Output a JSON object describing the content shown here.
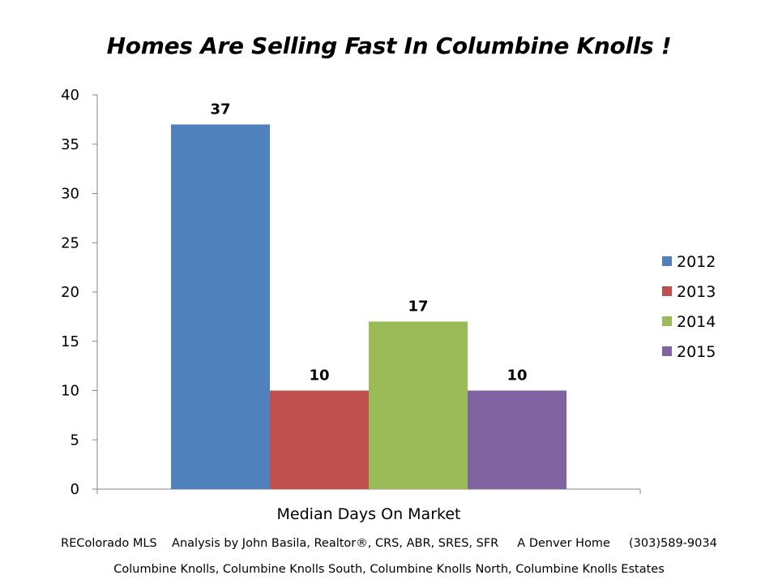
{
  "title": "Homes Are Selling Fast In Columbine Knolls !",
  "footer": {
    "line1": "REColorado MLS    Analysis by John Basila, Realtor®, CRS, ABR, SRES, SFR     A Denver Home     (303)589-9034",
    "line2": "Columbine Knolls, Columbine Knolls South, Columbine Knolls North, Columbine Knolls Estates"
  },
  "chart_data": {
    "type": "bar",
    "title": "Homes Are Selling Fast In Columbine Knolls !",
    "categories": [
      "Median Days On Market"
    ],
    "series": [
      {
        "name": "2012",
        "values": [
          37
        ],
        "color": "#4F81BD"
      },
      {
        "name": "2013",
        "values": [
          10
        ],
        "color": "#C0504D"
      },
      {
        "name": "2014",
        "values": [
          17
        ],
        "color": "#9BBB59"
      },
      {
        "name": "2015",
        "values": [
          10
        ],
        "color": "#8064A2"
      }
    ],
    "xlabel": "",
    "ylabel": "",
    "ylim": [
      0,
      40
    ],
    "yticks": [
      0,
      5,
      10,
      15,
      20,
      25,
      30,
      35,
      40
    ],
    "data_labels": true,
    "grid": false,
    "legend_position": "right"
  }
}
